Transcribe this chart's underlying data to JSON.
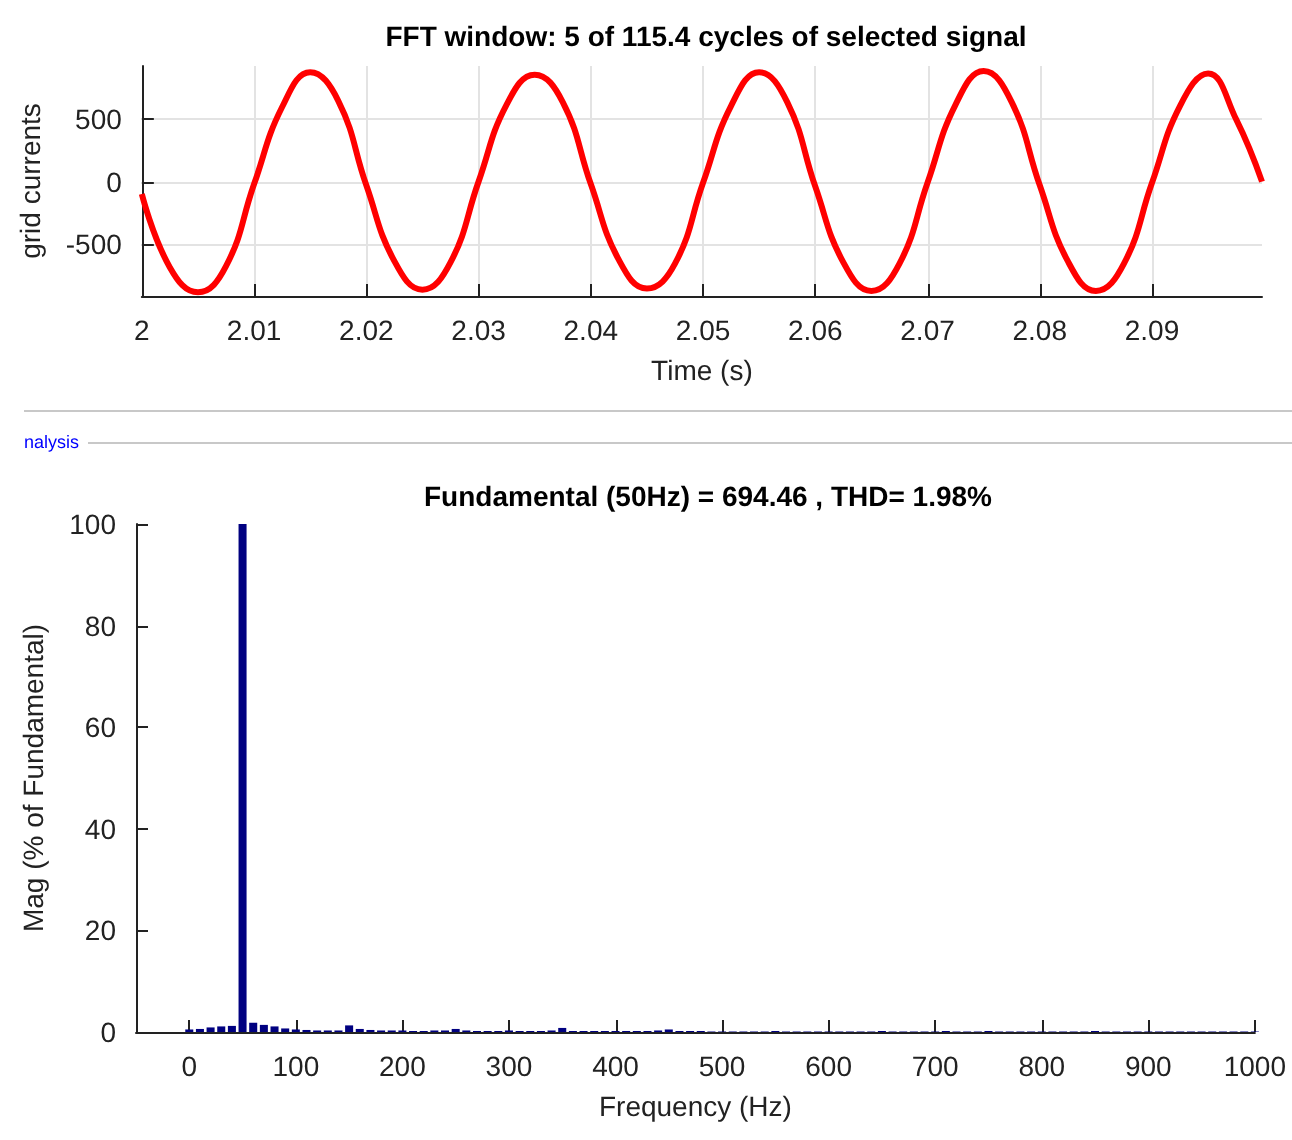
{
  "chart_data": [
    {
      "type": "line",
      "title": "FFT window: 5 of 115.4 cycles of selected signal",
      "xlabel": "Time (s)",
      "ylabel": "grid currents",
      "xlim": [
        2,
        2.0998
      ],
      "ylim": [
        -920,
        930
      ],
      "xticks": [
        2,
        2.01,
        2.02,
        2.03,
        2.04,
        2.05,
        2.06,
        2.07,
        2.08,
        2.09
      ],
      "yticks": [
        -500,
        0,
        500
      ],
      "grid": true,
      "marker": "none",
      "series": [
        {
          "color": "#ff0000",
          "x": [
            2,
            2.0025,
            2.005,
            2.0075,
            2.01,
            2.0125,
            2.015,
            2.0175,
            2.02,
            2.0225,
            2.025,
            2.0275,
            2.03,
            2.0325,
            2.035,
            2.0375,
            2.04,
            2.0425,
            2.045,
            2.0475,
            2.05,
            2.0525,
            2.055,
            2.0575,
            2.06,
            2.0625,
            2.065,
            2.0675,
            2.07,
            2.0725,
            2.075,
            2.0775,
            2.08,
            2.0825,
            2.085,
            2.0875,
            2.09,
            2.0925,
            2.095,
            2.0975,
            2.0998
          ],
          "values": [
            -100,
            -690,
            -890,
            -680,
            -20,
            600,
            880,
            650,
            -30,
            -640,
            -870,
            -650,
            0,
            620,
            860,
            640,
            -20,
            -630,
            -860,
            -660,
            -10,
            610,
            880,
            640,
            -40,
            -650,
            -880,
            -660,
            -10,
            620,
            890,
            640,
            -30,
            -640,
            -880,
            -660,
            -10,
            610,
            870,
            500,
            0
          ]
        }
      ]
    },
    {
      "type": "bar",
      "title": "Fundamental (50Hz) = 694.46 , THD= 1.98%",
      "xlabel": "Frequency (Hz)",
      "ylabel": "Mag (% of Fundamental)",
      "xlim": [
        -50,
        1000
      ],
      "ylim": [
        0,
        100
      ],
      "xticks": [
        0,
        100,
        200,
        300,
        400,
        500,
        600,
        700,
        800,
        900,
        1000
      ],
      "yticks": [
        0,
        20,
        40,
        60,
        80,
        100
      ],
      "annotations": [
        "nalysis"
      ],
      "series": [
        {
          "color": "#000080",
          "x": [
            0,
            10,
            20,
            30,
            40,
            50,
            60,
            70,
            80,
            90,
            100,
            110,
            120,
            130,
            140,
            150,
            160,
            170,
            180,
            190,
            200,
            210,
            220,
            230,
            240,
            250,
            260,
            270,
            280,
            290,
            300,
            310,
            320,
            330,
            340,
            350,
            360,
            370,
            380,
            390,
            400,
            410,
            420,
            430,
            440,
            450,
            460,
            470,
            480,
            490,
            500,
            510,
            520,
            530,
            540,
            550,
            560,
            570,
            580,
            590,
            600,
            610,
            620,
            630,
            640,
            650,
            660,
            670,
            680,
            690,
            700,
            710,
            720,
            730,
            740,
            750,
            760,
            770,
            780,
            790,
            800,
            810,
            820,
            830,
            840,
            850,
            860,
            870,
            880,
            890,
            900,
            910,
            920,
            930,
            940,
            950,
            960,
            970,
            980,
            990,
            1000
          ],
          "values": [
            0.5,
            0.6,
            0.9,
            1.1,
            1.2,
            100,
            1.8,
            1.4,
            1.1,
            0.7,
            0.5,
            0.4,
            0.3,
            0.3,
            0.3,
            1.3,
            0.6,
            0.4,
            0.3,
            0.3,
            0.3,
            0.2,
            0.2,
            0.3,
            0.3,
            0.6,
            0.3,
            0.2,
            0.2,
            0.2,
            0.3,
            0.2,
            0.2,
            0.2,
            0.3,
            0.8,
            0.2,
            0.2,
            0.2,
            0.2,
            0.2,
            0.2,
            0.2,
            0.2,
            0.3,
            0.5,
            0.2,
            0.2,
            0.2,
            0.1,
            0.1,
            0.1,
            0.1,
            0.1,
            0.1,
            0.2,
            0.1,
            0.1,
            0.1,
            0.1,
            0.1,
            0.1,
            0.1,
            0.1,
            0.1,
            0.2,
            0.1,
            0.1,
            0.1,
            0.1,
            0.1,
            0.2,
            0.1,
            0.1,
            0.1,
            0.2,
            0.1,
            0.1,
            0.1,
            0.1,
            0.1,
            0.1,
            0.1,
            0.1,
            0.1,
            0.2,
            0.1,
            0.1,
            0.1,
            0.1,
            0.1,
            0.1,
            0.1,
            0.1,
            0.1,
            0.1,
            0.1,
            0.1,
            0.1,
            0.1,
            0.1
          ]
        }
      ]
    }
  ]
}
